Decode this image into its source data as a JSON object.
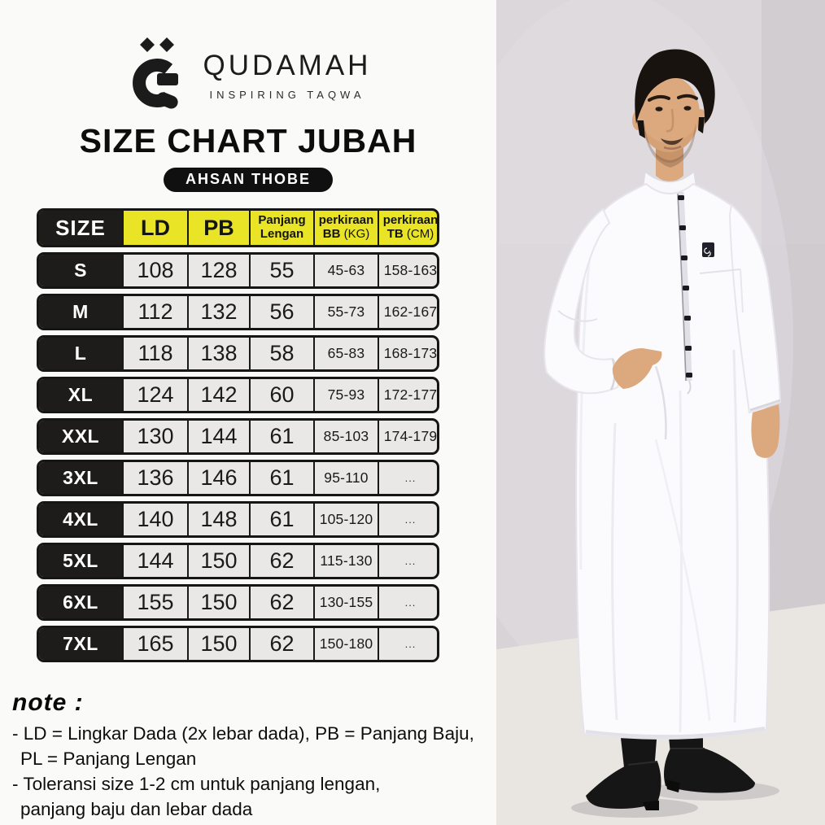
{
  "colors": {
    "accent_yellow": "#e9e426",
    "table_black": "#1d1c1a",
    "cell_gray": "#e9e8e6",
    "page_bg": "#fafaf8",
    "photo_wall": "#d8d3d7",
    "photo_floor": "#e9e6e2",
    "robe_white": "#fbfbfd",
    "skin": "#dca87d",
    "hair_black": "#191310",
    "ink": "#1b1b1b"
  },
  "brand": {
    "name": "QUDAMAH",
    "tagline": "INSPIRING TAQWA",
    "logo_icon": "qudamah-qaf-monogram"
  },
  "title": "SIZE CHART JUBAH",
  "badge": "AHSAN THOBE",
  "size_chart": {
    "header": {
      "size": "SIZE",
      "ld": "LD",
      "pb": "PB",
      "pl_line1": "Panjang",
      "pl_line2": "Lengan",
      "bb_line1": "perkiraan",
      "bb_bold": "BB",
      "bb_unit": "(KG)",
      "tb_line1": "perkiraan",
      "tb_bold": "TB",
      "tb_unit": "(CM)"
    },
    "rows": [
      {
        "size": "S",
        "ld": "108",
        "pb": "128",
        "pl": "55",
        "bb": "45-63",
        "tb": "158-163"
      },
      {
        "size": "M",
        "ld": "112",
        "pb": "132",
        "pl": "56",
        "bb": "55-73",
        "tb": "162-167"
      },
      {
        "size": "L",
        "ld": "118",
        "pb": "138",
        "pl": "58",
        "bb": "65-83",
        "tb": "168-173"
      },
      {
        "size": "XL",
        "ld": "124",
        "pb": "142",
        "pl": "60",
        "bb": "75-93",
        "tb": "172-177"
      },
      {
        "size": "XXL",
        "ld": "130",
        "pb": "144",
        "pl": "61",
        "bb": "85-103",
        "tb": "174-179"
      },
      {
        "size": "3XL",
        "ld": "136",
        "pb": "146",
        "pl": "61",
        "bb": "95-110",
        "tb": "..."
      },
      {
        "size": "4XL",
        "ld": "140",
        "pb": "148",
        "pl": "61",
        "bb": "105-120",
        "tb": "..."
      },
      {
        "size": "5XL",
        "ld": "144",
        "pb": "150",
        "pl": "62",
        "bb": "115-130",
        "tb": "..."
      },
      {
        "size": "6XL",
        "ld": "155",
        "pb": "150",
        "pl": "62",
        "bb": "130-155",
        "tb": "..."
      },
      {
        "size": "7XL",
        "ld": "165",
        "pb": "150",
        "pl": "62",
        "bb": "150-180",
        "tb": "..."
      }
    ]
  },
  "note": {
    "title": "note :",
    "lines": [
      "- LD = Lingkar Dada (2x lebar dada), PB = Panjang Baju,",
      "PL =  Panjang Lengan",
      "- Toleransi size 1-2 cm untuk panjang lengan,",
      "panjang baju dan lebar dada"
    ]
  }
}
